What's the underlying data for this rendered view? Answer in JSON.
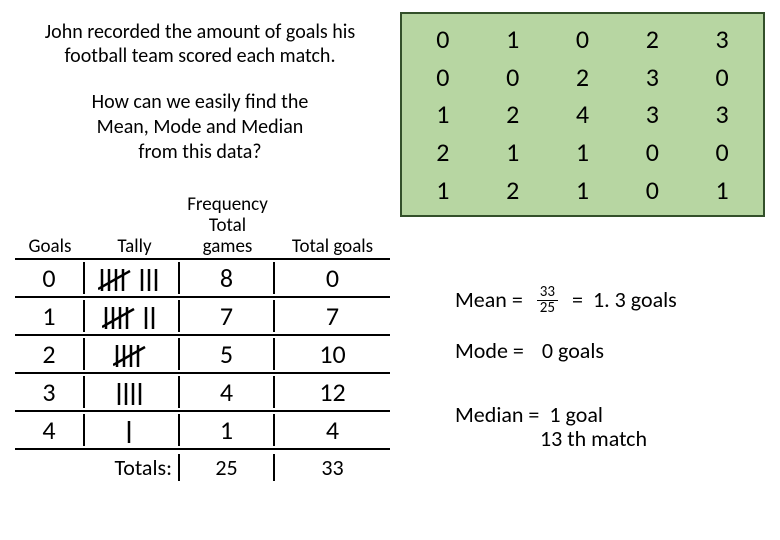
{
  "intro": "John recorded the amount of goals his football team scored each match.",
  "question_l1": "How can we easily find the",
  "question_l2": "Mean, Mode and Median",
  "question_l3": "from this data?",
  "freq_table": {
    "headers": {
      "goals": "Goals",
      "tally": "Tally",
      "freq_l1": "Frequency",
      "freq_l2": "Total",
      "freq_l3": "games",
      "total": "Total goals"
    },
    "rows": [
      {
        "goals": "0",
        "tally_count": 8,
        "freq": "8",
        "total": "0"
      },
      {
        "goals": "1",
        "tally_count": 7,
        "freq": "7",
        "total": "7"
      },
      {
        "goals": "2",
        "tally_count": 5,
        "freq": "5",
        "total": "10"
      },
      {
        "goals": "3",
        "tally_count": 4,
        "freq": "4",
        "total": "12"
      },
      {
        "goals": "4",
        "tally_count": 1,
        "freq": "1",
        "total": "4"
      }
    ],
    "totals_label": "Totals:",
    "totals_freq": "25",
    "totals_total": "33"
  },
  "data_grid": {
    "background_color": "#b7d6a2",
    "border_color": "#33502a",
    "values": [
      "0",
      "1",
      "0",
      "2",
      "3",
      "0",
      "0",
      "2",
      "3",
      "0",
      "1",
      "2",
      "4",
      "3",
      "3",
      "2",
      "1",
      "1",
      "0",
      "0",
      "1",
      "2",
      "1",
      "0",
      "1"
    ]
  },
  "stats": {
    "mean_label": "Mean =",
    "mean_num": "33",
    "mean_den": "25",
    "mean_eq": "=",
    "mean_result": "1. 3 goals",
    "mode_label": "Mode =",
    "mode_result": "0 goals",
    "median_extra": "13 th match",
    "median_label": "Median =",
    "median_result": "1 goal"
  }
}
